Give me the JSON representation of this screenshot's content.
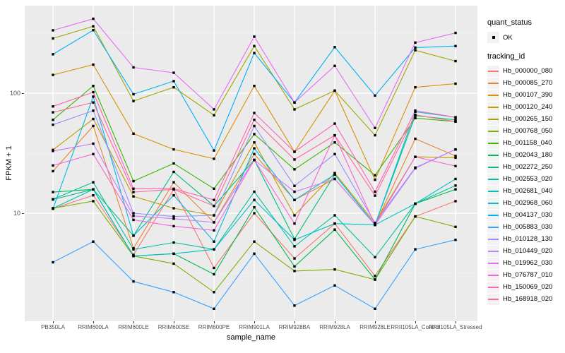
{
  "figure": {
    "y_axis": {
      "title": "FPKM + 1",
      "tick_labels": [
        "100",
        "10"
      ]
    },
    "x_axis": {
      "title": "sample_name"
    },
    "legend": {
      "quant_status": {
        "title": "quant_status",
        "items": [
          {
            "label": "OK",
            "marker": "black-point"
          }
        ]
      },
      "tracking_id": {
        "title": "tracking_id"
      }
    },
    "panel_bg": "#EBEBEB",
    "gridline_color": "#FFFFFF",
    "point_color": "#000000"
  },
  "chart_data": {
    "type": "line",
    "title": "",
    "xlabel": "sample_name",
    "ylabel": "FPKM + 1",
    "y_scale": "log10",
    "ylim": [
      1.25,
      540
    ],
    "y_ticks": [
      100,
      10
    ],
    "y_minor_ticks": [
      316.2,
      31.62,
      3.162
    ],
    "grid": true,
    "legend_position": "right",
    "point_marker": "black square (quant_status OK)",
    "categories": [
      "PB350LA",
      "RRIM600LA",
      "RRIM600LE",
      "RRIM600SE",
      "RRIM600PE",
      "RRIM901LA",
      "RRIM928BA",
      "RRIM928LA",
      "RRIM928LE",
      "RRII105LA_Control",
      "RRII105LA_Stressed"
    ],
    "series": [
      {
        "name": "Hb_000000_080",
        "color": "#F8766D",
        "values": [
          10.9,
          14.1,
          4.5,
          15.8,
          3.5,
          10.0,
          4.2,
          8.2,
          3.0,
          9.4,
          12.6
        ]
      },
      {
        "name": "Hb_000085_270",
        "color": "#EA8331",
        "values": [
          22.4,
          53.3,
          5.1,
          18.1,
          8.4,
          31.1,
          12.9,
          19.3,
          8.0,
          41.7,
          30.0
        ]
      },
      {
        "name": "Hb_000107_390",
        "color": "#D89000",
        "values": [
          142,
          173,
          46,
          34,
          28.4,
          115,
          32.5,
          105,
          19.0,
          112,
          120
        ]
      },
      {
        "name": "Hb_000120_240",
        "color": "#C09B00",
        "values": [
          33.7,
          61,
          13.8,
          11.0,
          9.6,
          38.9,
          9.6,
          21.6,
          8.3,
          29.5,
          29.0
        ]
      },
      {
        "name": "Hb_000265_150",
        "color": "#A3A500",
        "values": [
          286,
          361,
          86,
          112,
          65.5,
          247,
          73.3,
          105,
          44.6,
          228,
          185
        ]
      },
      {
        "name": "Hb_000768_050",
        "color": "#7CAE00",
        "values": [
          11.0,
          12.6,
          4.4,
          3.8,
          2.2,
          5.8,
          3.3,
          3.4,
          2.8,
          9.4,
          7.7
        ]
      },
      {
        "name": "Hb_001158_040",
        "color": "#39B600",
        "values": [
          60,
          115,
          18.5,
          26,
          16,
          45.6,
          23.2,
          38.9,
          20.7,
          62,
          58
        ]
      },
      {
        "name": "Hb_002043_180",
        "color": "#00BB4E",
        "values": [
          15.0,
          15.8,
          4.4,
          4.6,
          3.1,
          11.2,
          3.6,
          7.3,
          2.8,
          12.0,
          15.8
        ]
      },
      {
        "name": "Hb_002272_250",
        "color": "#00BF7D",
        "values": [
          13.0,
          15.8,
          6.5,
          22.1,
          11.5,
          27.8,
          6.1,
          21.0,
          8.0,
          65,
          60
        ]
      },
      {
        "name": "Hb_002553_020",
        "color": "#00C1A3",
        "values": [
          13.1,
          18.1,
          5.0,
          5.7,
          5.0,
          15.1,
          5.3,
          9.6,
          4.3,
          12.0,
          17.0
        ]
      },
      {
        "name": "Hb_002681_040",
        "color": "#00BFC4",
        "values": [
          11.0,
          15.8,
          4.4,
          4.6,
          5.0,
          12.9,
          6.0,
          8.2,
          8.0,
          12.0,
          19.3
        ]
      },
      {
        "name": "Hb_002968_060",
        "color": "#00BAE0",
        "values": [
          10.9,
          93.6,
          6.5,
          14.1,
          5.8,
          34.7,
          12.9,
          21.0,
          8.0,
          70,
          63
        ]
      },
      {
        "name": "Hb_004137_030",
        "color": "#00B0F6",
        "values": [
          211,
          335,
          98,
          126,
          33.3,
          216,
          83.7,
          242,
          95.5,
          240,
          247
        ]
      },
      {
        "name": "Hb_005883_030",
        "color": "#35A2FF",
        "values": [
          3.9,
          5.8,
          2.7,
          2.2,
          1.6,
          4.6,
          1.7,
          2.5,
          1.6,
          5.0,
          6.0
        ]
      },
      {
        "name": "Hb_010128_130",
        "color": "#9590FF",
        "values": [
          54.6,
          71.5,
          10.0,
          9.4,
          9.6,
          53.3,
          16.9,
          31.1,
          8.3,
          24.0,
          34.0
        ]
      },
      {
        "name": "Hb_010449_020",
        "color": "#C77CFF",
        "values": [
          33.0,
          38.0,
          9.5,
          9.0,
          8.4,
          27.8,
          15.1,
          19.3,
          8.0,
          23.7,
          34.0
        ]
      },
      {
        "name": "Hb_019962_030",
        "color": "#E76BF3",
        "values": [
          334,
          417,
          164,
          148,
          73.3,
          296,
          83.7,
          169,
          51.3,
          264,
          318
        ]
      },
      {
        "name": "Hb_076787_010",
        "color": "#FA62DB",
        "values": [
          25.0,
          31.1,
          8.8,
          7.8,
          7.2,
          27.8,
          8.2,
          44.6,
          8.0,
          29.5,
          24.7
        ]
      },
      {
        "name": "Hb_150069_020",
        "color": "#FF62BC",
        "values": [
          77.6,
          102,
          16.0,
          16.0,
          12.9,
          68.4,
          32.5,
          55.8,
          15.1,
          71.6,
          63.0
        ]
      },
      {
        "name": "Hb_168918_020",
        "color": "#FF6A98",
        "values": [
          69.3,
          83.7,
          15.0,
          15.8,
          11.5,
          60.0,
          28.0,
          44.6,
          14.0,
          66.0,
          58.0
        ]
      }
    ]
  }
}
